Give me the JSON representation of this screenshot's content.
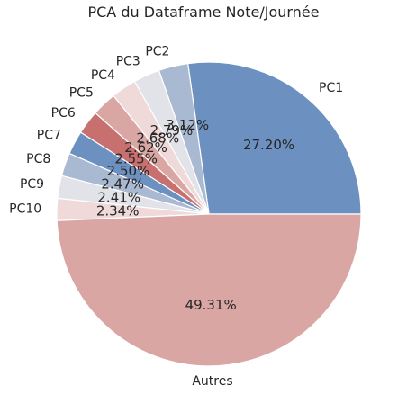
{
  "chart_data": {
    "type": "pie",
    "title": "PCA du Dataframe Note/Journée",
    "labels": [
      "PC1",
      "PC2",
      "PC3",
      "PC4",
      "PC5",
      "PC6",
      "PC7",
      "PC8",
      "PC9",
      "PC10",
      "Autres"
    ],
    "values": [
      27.2,
      3.12,
      2.79,
      2.68,
      2.62,
      2.55,
      2.5,
      2.47,
      2.41,
      2.34,
      49.31
    ],
    "autopct_labels": [
      "27.20%",
      "3.12%",
      "2.79%",
      "2.68%",
      "2.62%",
      "2.55%",
      "2.50%",
      "2.47%",
      "2.41%",
      "2.34%",
      "49.31%"
    ],
    "colors": [
      "#6c90c0",
      "#a9b9d1",
      "#e2e3e8",
      "#efd9d9",
      "#d9a6a4",
      "#c8706f",
      "#6c90c0",
      "#a9b9d1",
      "#e2e3e8",
      "#efd9d9",
      "#d9a6a4"
    ],
    "start_angle_deg": 0,
    "direction": "counterclockwise",
    "legend": "none"
  }
}
